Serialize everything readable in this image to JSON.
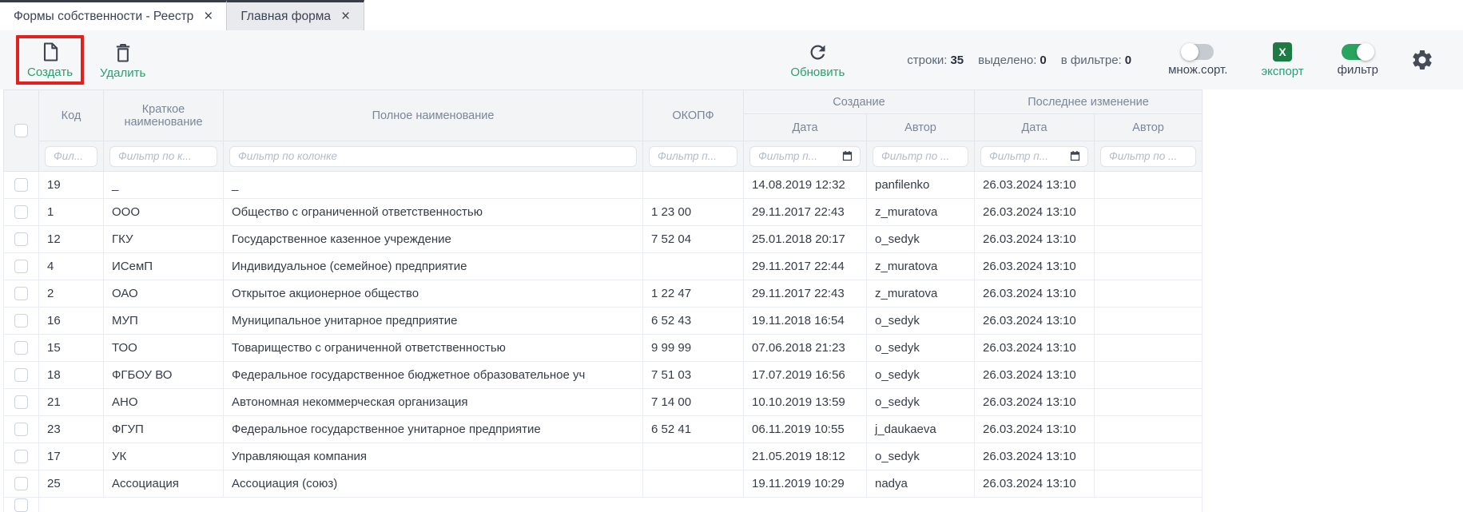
{
  "icons": {
    "close": "×",
    "create": "document-new",
    "delete": "trash",
    "refresh": "circular-arrow",
    "calendar": "calendar",
    "settings": "gear",
    "export_letter": "X"
  },
  "colors": {
    "accent_green": "#2aa06e",
    "annotation_red": "#e3201d",
    "excel_green": "#1e7b44",
    "toggle_on_green": "#27a55f",
    "header_text": "#7b8698",
    "icon_dark": "#3f4550"
  },
  "tabs": [
    {
      "label": "Формы собственности - Реестр",
      "active": true
    },
    {
      "label": "Главная форма",
      "active": false
    }
  ],
  "toolbar": {
    "create_label": "Создать",
    "delete_label": "Удалить",
    "refresh_label": "Обновить",
    "counters": {
      "rows_label": "строки:",
      "rows_value": "35",
      "selected_label": "выделено:",
      "selected_value": "0",
      "in_filter_label": "в фильтре:",
      "in_filter_value": "0"
    },
    "multi_sort_label": "множ.сорт.",
    "export_label": "экспорт",
    "filter_label": "фильтр",
    "toggles": {
      "multi_sort_on": false,
      "filter_on": true
    }
  },
  "table": {
    "group_headers": [
      {
        "label": "Создание"
      },
      {
        "label": "Последнее изменение"
      }
    ],
    "columns": [
      {
        "label": "Код"
      },
      {
        "label": "Краткое наименование"
      },
      {
        "label": "Полное наименование"
      },
      {
        "label": "ОКОПФ"
      },
      {
        "label": "Дата"
      },
      {
        "label": "Автор"
      },
      {
        "label": "Дата"
      },
      {
        "label": "Автор"
      }
    ],
    "filters": [
      {
        "placeholder": "Фил..."
      },
      {
        "placeholder": "Фильтр по к..."
      },
      {
        "placeholder": "Фильтр по колонке"
      },
      {
        "placeholder": "Фильтр п..."
      },
      {
        "placeholder": "Фильтр п...",
        "calendar": true
      },
      {
        "placeholder": "Фильтр по ..."
      },
      {
        "placeholder": "Фильтр п...",
        "calendar": true
      },
      {
        "placeholder": "Фильтр по ..."
      }
    ],
    "row_keys": [
      "code",
      "short_name",
      "full_name",
      "okopf",
      "created_date",
      "created_author",
      "modified_date",
      "modified_author"
    ],
    "rows": [
      {
        "code": "19",
        "short_name": "_",
        "full_name": "_",
        "okopf": "",
        "created_date": "14.08.2019 12:32",
        "created_author": "panfilenko",
        "modified_date": "26.03.2024 13:10",
        "modified_author": ""
      },
      {
        "code": "1",
        "short_name": "ООО",
        "full_name": "Общество с ограниченной ответственностью",
        "okopf": "1 23 00",
        "created_date": "29.11.2017 22:43",
        "created_author": "z_muratova",
        "modified_date": "26.03.2024 13:10",
        "modified_author": ""
      },
      {
        "code": "12",
        "short_name": "ГКУ",
        "full_name": "Государственное казенное учреждение",
        "okopf": "7 52 04",
        "created_date": "25.01.2018 20:17",
        "created_author": "o_sedyk",
        "modified_date": "26.03.2024 13:10",
        "modified_author": ""
      },
      {
        "code": "4",
        "short_name": "ИСемП",
        "full_name": "Индивидуальное (семейное) предприятие",
        "okopf": "",
        "created_date": "29.11.2017 22:44",
        "created_author": "z_muratova",
        "modified_date": "26.03.2024 13:10",
        "modified_author": ""
      },
      {
        "code": "2",
        "short_name": "ОАО",
        "full_name": "Открытое акционерное общество",
        "okopf": "1 22 47",
        "created_date": "29.11.2017 22:43",
        "created_author": "z_muratova",
        "modified_date": "26.03.2024 13:10",
        "modified_author": ""
      },
      {
        "code": "16",
        "short_name": "МУП",
        "full_name": "Муниципальное унитарное предприятие",
        "okopf": "6 52 43",
        "created_date": "19.11.2018 16:54",
        "created_author": "o_sedyk",
        "modified_date": "26.03.2024 13:10",
        "modified_author": ""
      },
      {
        "code": "15",
        "short_name": "ТОО",
        "full_name": "Товарищество с ограниченной ответственностью",
        "okopf": "9 99 99",
        "created_date": "07.06.2018 21:23",
        "created_author": "o_sedyk",
        "modified_date": "26.03.2024 13:10",
        "modified_author": ""
      },
      {
        "code": "18",
        "short_name": "ФГБОУ ВО",
        "full_name": "Федеральное государственное бюджетное образовательное уч",
        "okopf": "7 51 03",
        "created_date": "17.07.2019 16:56",
        "created_author": "o_sedyk",
        "modified_date": "26.03.2024 13:10",
        "modified_author": ""
      },
      {
        "code": "21",
        "short_name": "АНО",
        "full_name": "Автономная некоммерческая организация",
        "okopf": "7 14 00",
        "created_date": "10.10.2019 13:59",
        "created_author": "o_sedyk",
        "modified_date": "26.03.2024 13:10",
        "modified_author": ""
      },
      {
        "code": "23",
        "short_name": "ФГУП",
        "full_name": "Федеральное государственное унитарное предприятие",
        "okopf": "6 52 41",
        "created_date": "06.11.2019 10:55",
        "created_author": "j_daukaeva",
        "modified_date": "26.03.2024 13:10",
        "modified_author": ""
      },
      {
        "code": "17",
        "short_name": "УК",
        "full_name": "Управляющая компания",
        "okopf": "",
        "created_date": "21.05.2019 18:12",
        "created_author": "o_sedyk",
        "modified_date": "26.03.2024 13:10",
        "modified_author": ""
      },
      {
        "code": "25",
        "short_name": "Ассоциация",
        "full_name": "Ассоциация (союз)",
        "okopf": "",
        "created_date": "19.11.2019 10:29",
        "created_author": "nadya",
        "modified_date": "26.03.2024 13:10",
        "modified_author": ""
      }
    ]
  }
}
